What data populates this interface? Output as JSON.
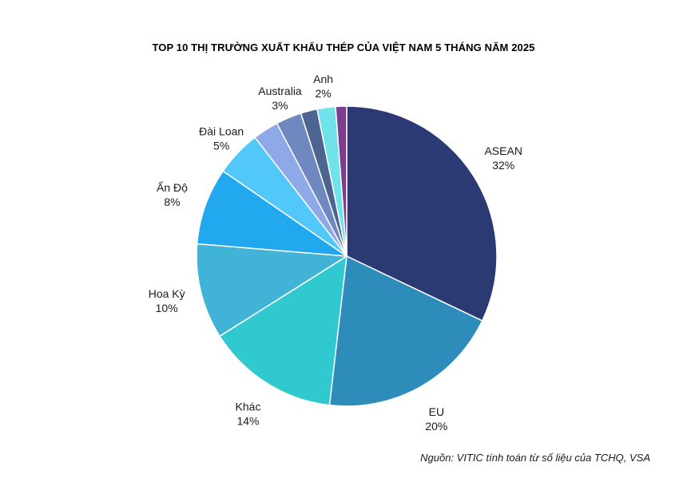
{
  "chart_data": {
    "type": "pie",
    "title": "TOP 10 THỊ TRƯỜNG XUẤT KHẨU THÉP CỦA VIỆT NAM 5 THÁNG NĂM 2025",
    "source": "Nguồn: VITIC tính toán từ số liệu của TCHQ, VSA",
    "start_angle_deg": 0,
    "direction": "clockwise",
    "slices": [
      {
        "label": "ASEAN",
        "pct_label": "32%",
        "value": 32.5,
        "color": "#2b3a73",
        "show_label": true
      },
      {
        "label": "EU",
        "pct_label": "20%",
        "value": 20.0,
        "color": "#2e8cba",
        "show_label": true
      },
      {
        "label": "Khác",
        "pct_label": "14%",
        "value": 14.4,
        "color": "#30c9cf",
        "show_label": true
      },
      {
        "label": "Hoa Kỳ",
        "pct_label": "10%",
        "value": 10.4,
        "color": "#41b3d6",
        "show_label": true
      },
      {
        "label": "Ấn Độ",
        "pct_label": "8%",
        "value": 8.4,
        "color": "#22a8ee",
        "show_label": true
      },
      {
        "label": "Đài Loan",
        "pct_label": "5%",
        "value": 5.0,
        "color": "#52c7fa",
        "show_label": true
      },
      {
        "label": "",
        "pct_label": "",
        "value": 2.8,
        "color": "#8ea8e8",
        "show_label": false
      },
      {
        "label": "Australia",
        "pct_label": "3%",
        "value": 2.8,
        "color": "#6f88c0",
        "show_label": true
      },
      {
        "label": "",
        "pct_label": "",
        "value": 1.8,
        "color": "#4b6590",
        "show_label": false
      },
      {
        "label": "Anh",
        "pct_label": "2%",
        "value": 2.0,
        "color": "#6fe2ea",
        "show_label": true
      },
      {
        "label": "",
        "pct_label": "",
        "value": 1.2,
        "color": "#7a3e8c",
        "show_label": false
      }
    ]
  }
}
